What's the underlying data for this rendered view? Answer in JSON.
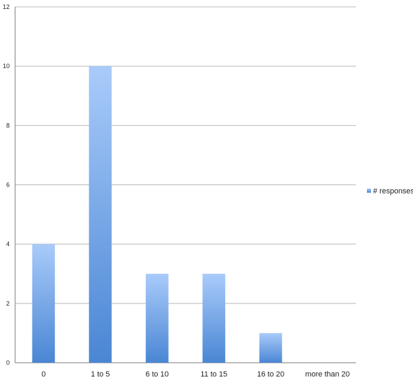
{
  "chart_data": {
    "type": "bar",
    "categories": [
      "0",
      "1 to 5",
      "6 to 10",
      "11 to 15",
      "16 to 20",
      "more than 20"
    ],
    "series": [
      {
        "name": "# responses",
        "values": [
          4,
          10,
          3,
          3,
          1,
          0
        ]
      }
    ],
    "yticks": [
      "0",
      "2",
      "4",
      "6",
      "8",
      "10",
      "12"
    ],
    "ylim": [
      0,
      12
    ],
    "grid": true,
    "legend": "right",
    "colors": {
      "bar_top": "#a9cbfa",
      "bar_bottom": "#4a86d4",
      "grid": "#b8b8b8",
      "axis": "#7a7a7a"
    }
  }
}
